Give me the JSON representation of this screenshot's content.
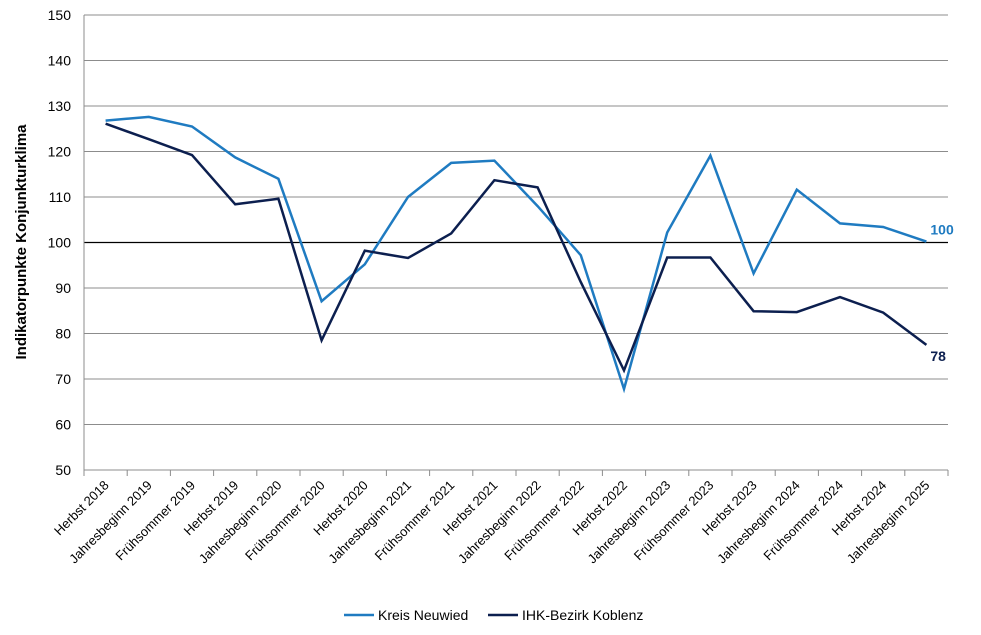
{
  "chart_data": {
    "type": "line",
    "title": "",
    "xlabel": "",
    "ylabel": "Indikatorpunkte Konjunkturklima",
    "ylim": [
      50,
      150
    ],
    "yticks": [
      50,
      60,
      70,
      80,
      90,
      100,
      110,
      120,
      130,
      140,
      150
    ],
    "reference_line": 100,
    "grid": true,
    "legend_position": "bottom",
    "categories": [
      "Herbst 2018",
      "Jahresbeginn 2019",
      "Frühsommer 2019",
      "Herbst 2019",
      "Jahresbeginn 2020",
      "Frühsommer 2020",
      "Herbst 2020",
      "Jahresbeginn 2021",
      "Frühsommer 2021",
      "Herbst 2021",
      "Jahresbeginn 2022",
      "Frühsommer 2022",
      "Herbst 2022",
      "Jahresbeginn 2023",
      "Frühsommer 2023",
      "Herbst 2023",
      "Jahresbeginn 2024",
      "Frühsommer 2024",
      "Herbst 2024",
      "Jahresbeginn 2025"
    ],
    "series": [
      {
        "name": "Kreis Neuwied",
        "color": "#1f7bc1",
        "values": [
          126.8,
          127.6,
          125.5,
          118.7,
          114,
          87.1,
          95.2,
          110,
          117.5,
          118,
          108,
          97.2,
          67.8,
          102.2,
          119.1,
          93.2,
          111.6,
          104.2,
          103.4,
          100.2
        ],
        "end_label": "100"
      },
      {
        "name": "IHK-Bezirk Koblenz",
        "color": "#0c1f4f",
        "values": [
          126.1,
          122.7,
          119.2,
          108.4,
          109.6,
          78.5,
          98.2,
          96.6,
          102,
          113.7,
          112.1,
          91.3,
          71.9,
          96.7,
          96.7,
          84.9,
          84.7,
          88,
          84.6,
          77.5
        ],
        "end_label": "78"
      }
    ]
  }
}
